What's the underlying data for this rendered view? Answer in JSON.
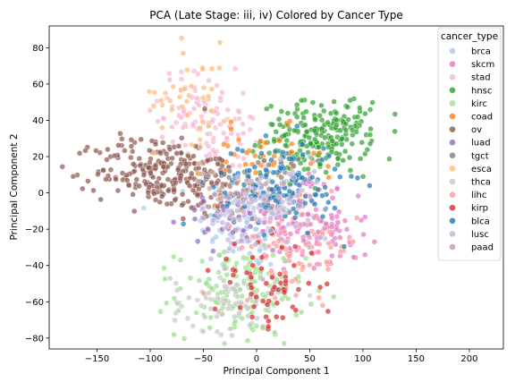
{
  "chart_data": {
    "type": "scatter",
    "title": "PCA (Late Stage: iii, iv) Colored by Cancer Type",
    "xlabel": "Principal Component 1",
    "ylabel": "Principal Component 2",
    "xlim": [
      -195,
      232
    ],
    "ylim": [
      -86,
      92
    ],
    "xticks": [
      -150,
      -100,
      -50,
      0,
      50,
      100,
      150,
      200
    ],
    "yticks": [
      -80,
      -60,
      -40,
      -20,
      0,
      20,
      40,
      60,
      80
    ],
    "xtick_labels": [
      "−150",
      "−100",
      "−50",
      "0",
      "50",
      "100",
      "150",
      "200"
    ],
    "ytick_labels": [
      "−80",
      "−60",
      "−40",
      "−20",
      "0",
      "20",
      "40",
      "60",
      "80"
    ],
    "grid": false,
    "legend": {
      "title": "cancer_type",
      "placement": "upper-right"
    },
    "series": [
      {
        "name": "brca",
        "color": "#aec7e8",
        "clusters": [
          {
            "cx": -5,
            "cy": -15,
            "sx": 25,
            "sy": 14,
            "n": 140
          }
        ]
      },
      {
        "name": "skcm",
        "color": "#e377c2",
        "clusters": [
          {
            "cx": 40,
            "cy": -15,
            "sx": 22,
            "sy": 14,
            "n": 110
          },
          {
            "cx": 75,
            "cy": -25,
            "sx": 15,
            "sy": 10,
            "n": 30
          }
        ]
      },
      {
        "name": "stad",
        "color": "#f7b6d2",
        "clusters": [
          {
            "cx": -55,
            "cy": 45,
            "sx": 18,
            "sy": 12,
            "n": 80
          },
          {
            "cx": -30,
            "cy": 25,
            "sx": 20,
            "sy": 12,
            "n": 40
          }
        ]
      },
      {
        "name": "hnsc",
        "color": "#2ca02c",
        "clusters": [
          {
            "cx": 55,
            "cy": 30,
            "sx": 25,
            "sy": 10,
            "n": 180
          },
          {
            "cx": 85,
            "cy": 35,
            "sx": 15,
            "sy": 8,
            "n": 40
          }
        ]
      },
      {
        "name": "kirc",
        "color": "#98df8a",
        "clusters": [
          {
            "cx": -15,
            "cy": -55,
            "sx": 30,
            "sy": 12,
            "n": 150
          }
        ]
      },
      {
        "name": "coad",
        "color": "#ff7f0e",
        "clusters": [
          {
            "cx": 5,
            "cy": 15,
            "sx": 28,
            "sy": 10,
            "n": 50
          }
        ]
      },
      {
        "name": "ov",
        "color": "#8c564b",
        "clusters": [
          {
            "cx": -95,
            "cy": 12,
            "sx": 28,
            "sy": 10,
            "n": 200
          },
          {
            "cx": -45,
            "cy": 5,
            "sx": 20,
            "sy": 10,
            "n": 60
          }
        ]
      },
      {
        "name": "luad",
        "color": "#9467bd",
        "clusters": [
          {
            "cx": -30,
            "cy": -15,
            "sx": 18,
            "sy": 8,
            "n": 30
          }
        ]
      },
      {
        "name": "tgct",
        "color": "#7f7f7f",
        "clusters": [
          {
            "cx": 10,
            "cy": 5,
            "sx": 25,
            "sy": 10,
            "n": 40
          }
        ]
      },
      {
        "name": "esca",
        "color": "#ffbb78",
        "clusters": [
          {
            "cx": -60,
            "cy": 55,
            "sx": 18,
            "sy": 14,
            "n": 40
          }
        ]
      },
      {
        "name": "thca",
        "color": "#c7c7c7",
        "clusters": [
          {
            "cx": -30,
            "cy": -60,
            "sx": 25,
            "sy": 8,
            "n": 70
          }
        ]
      },
      {
        "name": "lihc",
        "color": "#ff9896",
        "clusters": [
          {
            "cx": 40,
            "cy": -30,
            "sx": 28,
            "sy": 12,
            "n": 80
          }
        ]
      },
      {
        "name": "kirp",
        "color": "#d62728",
        "clusters": [
          {
            "cx": 10,
            "cy": -50,
            "sx": 25,
            "sy": 12,
            "n": 60
          }
        ]
      },
      {
        "name": "blca",
        "color": "#1f77b4",
        "clusters": [
          {
            "cx": 20,
            "cy": 5,
            "sx": 30,
            "sy": 12,
            "n": 140
          }
        ]
      },
      {
        "name": "lusc",
        "color": "#c5b0d5",
        "clusters": [
          {
            "cx": 5,
            "cy": -10,
            "sx": 30,
            "sy": 12,
            "n": 90
          }
        ]
      },
      {
        "name": "paad",
        "color": "#c49c94",
        "clusters": [
          {
            "cx": -30,
            "cy": 5,
            "sx": 15,
            "sy": 8,
            "n": 20
          }
        ]
      }
    ]
  }
}
